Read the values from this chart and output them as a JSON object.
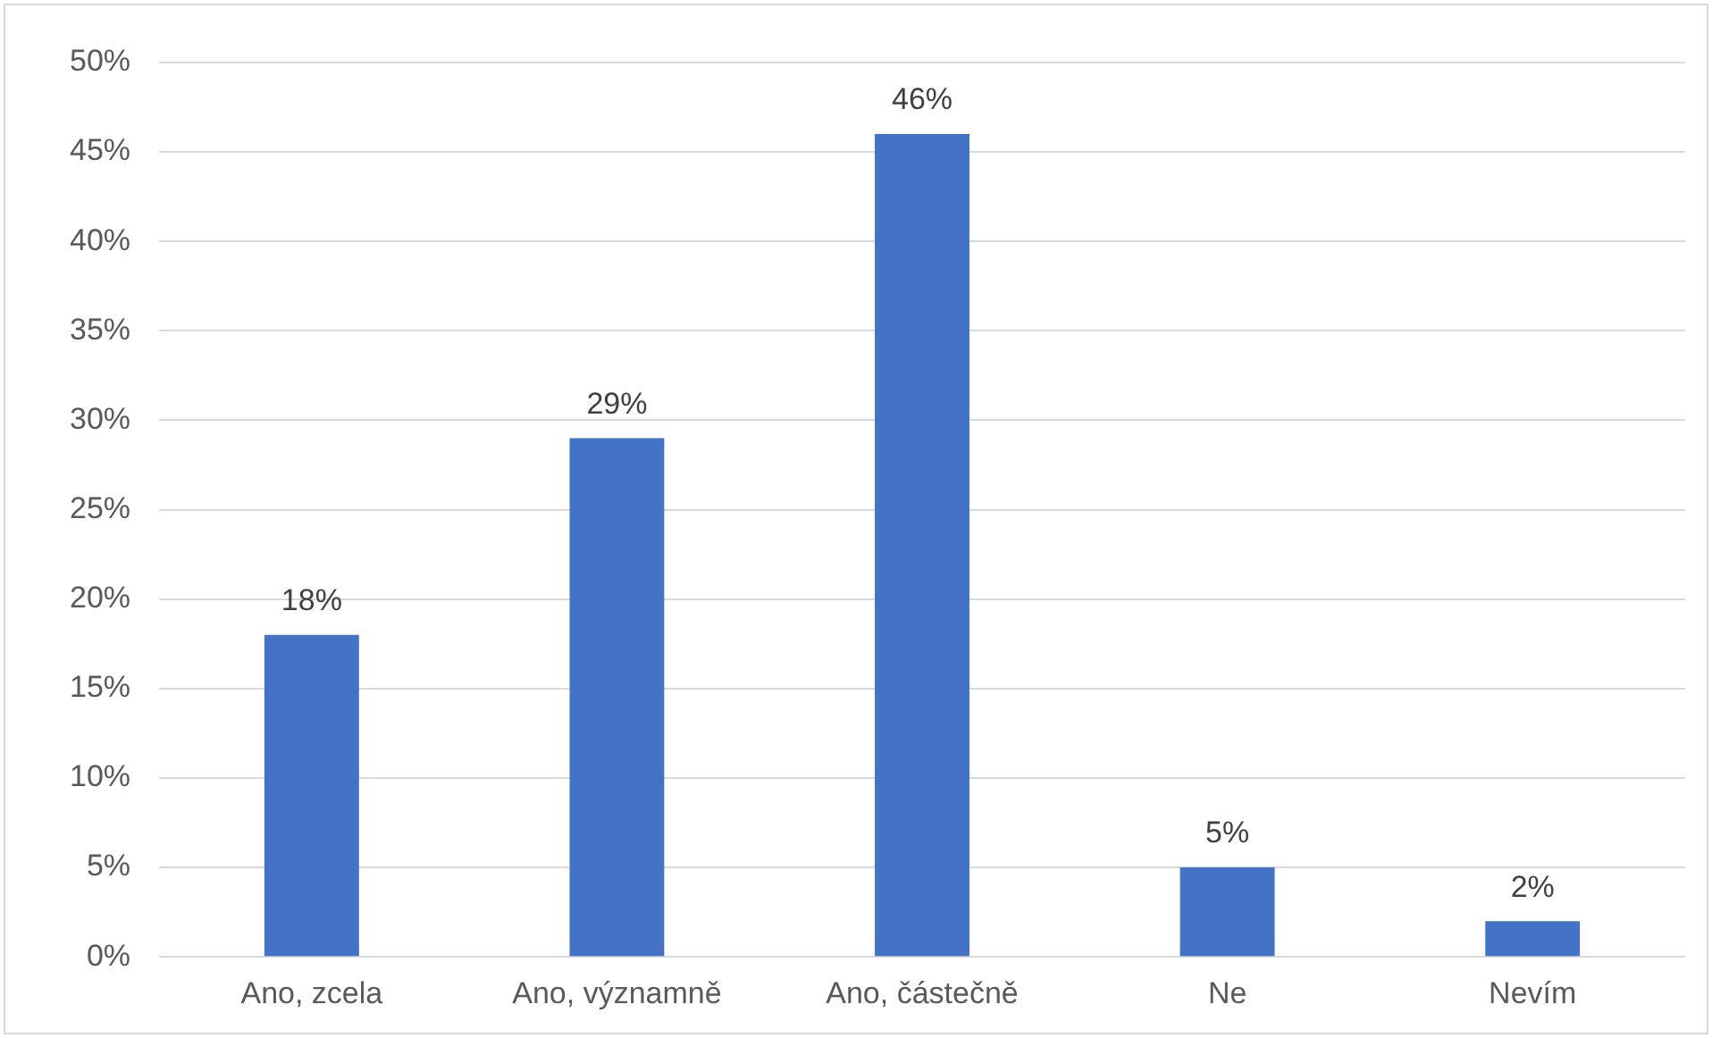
{
  "chart_data": {
    "type": "bar",
    "categories": [
      "Ano, zcela",
      "Ano, významně",
      "Ano, částečně",
      "Ne",
      "Nevím"
    ],
    "values": [
      18,
      29,
      46,
      5,
      2
    ],
    "value_labels": [
      "18%",
      "29%",
      "46%",
      "5%",
      "2%"
    ],
    "color": "#4472c4",
    "ylim": [
      0,
      50
    ],
    "yticks": [
      {
        "value": 0,
        "label": "0%"
      },
      {
        "value": 5,
        "label": "5%"
      },
      {
        "value": 10,
        "label": "10%"
      },
      {
        "value": 15,
        "label": "15%"
      },
      {
        "value": 20,
        "label": "20%"
      },
      {
        "value": 25,
        "label": "25%"
      },
      {
        "value": 30,
        "label": "30%"
      },
      {
        "value": 35,
        "label": "35%"
      },
      {
        "value": 40,
        "label": "40%"
      },
      {
        "value": 45,
        "label": "45%"
      },
      {
        "value": 50,
        "label": "50%"
      }
    ],
    "grid": "y",
    "legend": false
  }
}
